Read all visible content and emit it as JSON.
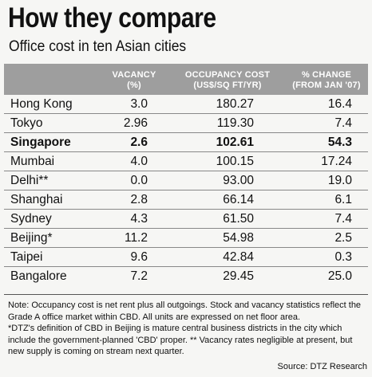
{
  "title": "How they compare",
  "subtitle": "Office cost in ten Asian cities",
  "headers": {
    "city": "",
    "vacancy": [
      "VACANCY",
      "(%)"
    ],
    "occupancy": [
      "OCCUPANCY COST",
      "(US$/SQ FT/YR)"
    ],
    "change": [
      "% CHANGE",
      "(FROM JAN '07)"
    ]
  },
  "rows": [
    {
      "city": "Hong Kong",
      "vacancy": "3.0",
      "occupancy": "180.27",
      "change": "16.4",
      "highlight": false
    },
    {
      "city": "Tokyo",
      "vacancy": "2.96",
      "occupancy": "119.30",
      "change": "7.4",
      "highlight": false
    },
    {
      "city": "Singapore",
      "vacancy": "2.6",
      "occupancy": "102.61",
      "change": "54.3",
      "highlight": true
    },
    {
      "city": "Mumbai",
      "vacancy": "4.0",
      "occupancy": "100.15",
      "change": "17.24",
      "highlight": false
    },
    {
      "city": "Delhi**",
      "vacancy": "0.0",
      "occupancy": "93.00",
      "change": "19.0",
      "highlight": false
    },
    {
      "city": "Shanghai",
      "vacancy": "2.8",
      "occupancy": "66.14",
      "change": "6.1",
      "highlight": false
    },
    {
      "city": "Sydney",
      "vacancy": "4.3",
      "occupancy": "61.50",
      "change": "7.4",
      "highlight": false
    },
    {
      "city": "Beijing*",
      "vacancy": "11.2",
      "occupancy": "54.98",
      "change": "2.5",
      "highlight": false
    },
    {
      "city": "Taipei",
      "vacancy": "9.6",
      "occupancy": "42.84",
      "change": "0.3",
      "highlight": false
    },
    {
      "city": "Bangalore",
      "vacancy": "7.2",
      "occupancy": "29.45",
      "change": "25.0",
      "highlight": false
    }
  ],
  "notes": [
    "Note: Occupancy cost is net rent plus all outgoings. Stock and vacancy statistics reflect the Grade A office market within CBD. All units are expressed on net floor area.",
    "*DTZ's definition of CBD in Beijing is mature central business districts in the city which include the government-planned 'CBD' proper. ** Vacancy rates negligible at present, but new supply is coming on stream next quarter."
  ],
  "source": "Source: DTZ Research",
  "colors": {
    "header_bg": "#9e9e9e",
    "header_text": "#ffffff",
    "background": "#f6f6f4"
  }
}
